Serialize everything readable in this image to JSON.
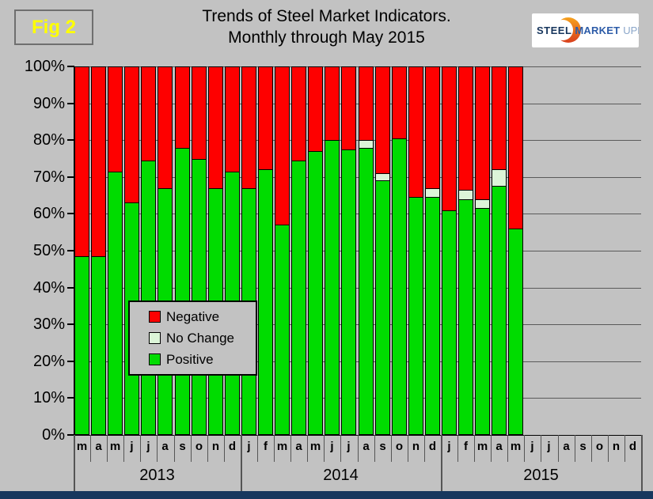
{
  "figure_label": "Fig 2",
  "title_line1": "Trends of Steel Market Indicators.",
  "title_line2": "Monthly through May 2015",
  "logo": {
    "word1": "STEEL",
    "word2": "MARKET",
    "word3": "UPDATE"
  },
  "legend": {
    "items": [
      {
        "label": "Negative",
        "color": "#fe0000"
      },
      {
        "label": "No Change",
        "color": "#dcf5d8"
      },
      {
        "label": "Positive",
        "color": "#00dc00"
      }
    ]
  },
  "colors": {
    "background": "#c2c2c2",
    "gridline": "#5a5a5a",
    "axis": "#000000",
    "negative": "#fe0000",
    "no_change": "#dcf5d8",
    "positive": "#00dc00",
    "bottom_strip": "#17375e",
    "fig_label_text": "#ffff00"
  },
  "chart_data": {
    "type": "bar",
    "subtype": "stacked-100-percent",
    "title": "Trends of Steel Market Indicators. Monthly through May 2015",
    "ylim": [
      0,
      100
    ],
    "grid": true,
    "legend_position": "inside-left",
    "yticks": [
      "0%",
      "10%",
      "20%",
      "30%",
      "40%",
      "50%",
      "60%",
      "70%",
      "80%",
      "90%",
      "100%"
    ],
    "months": [
      "m",
      "a",
      "m",
      "j",
      "j",
      "a",
      "s",
      "o",
      "n",
      "d",
      "j",
      "f",
      "m",
      "a",
      "m",
      "j",
      "j",
      "a",
      "s",
      "o",
      "n",
      "d",
      "j",
      "f",
      "m",
      "a",
      "m",
      "j",
      "j",
      "a",
      "s",
      "o",
      "n",
      "d"
    ],
    "year_groups": [
      {
        "label": "2013",
        "start": 0,
        "count": 10
      },
      {
        "label": "2014",
        "start": 10,
        "count": 12
      },
      {
        "label": "2015",
        "start": 22,
        "count": 12
      }
    ],
    "series": [
      {
        "name": "Positive",
        "color": "#00dc00",
        "values": [
          48.5,
          48.5,
          71.5,
          63,
          74.5,
          67,
          78,
          75,
          67,
          71.5,
          67,
          72,
          57,
          74.5,
          77,
          80,
          77.5,
          78,
          69,
          80.5,
          64.5,
          64.5,
          61,
          64,
          61.5,
          67.5,
          56,
          null,
          null,
          null,
          null,
          null,
          null,
          null
        ]
      },
      {
        "name": "No Change",
        "color": "#dcf5d8",
        "values": [
          0,
          0,
          0,
          0,
          0,
          0,
          0,
          0,
          0,
          0,
          0,
          0,
          0,
          0,
          0,
          0,
          0,
          2,
          2,
          0,
          0,
          2.5,
          0,
          2.5,
          2.5,
          4.5,
          0,
          null,
          null,
          null,
          null,
          null,
          null,
          null
        ]
      },
      {
        "name": "Negative",
        "color": "#fe0000",
        "values": [
          51.5,
          51.5,
          28.5,
          37,
          25.5,
          33,
          22,
          25,
          33,
          28.5,
          33,
          28,
          43,
          25.5,
          23,
          20,
          22.5,
          20,
          29,
          19.5,
          35.5,
          33,
          39,
          33.5,
          36,
          28,
          44,
          null,
          null,
          null,
          null,
          null,
          null,
          null
        ]
      }
    ]
  }
}
